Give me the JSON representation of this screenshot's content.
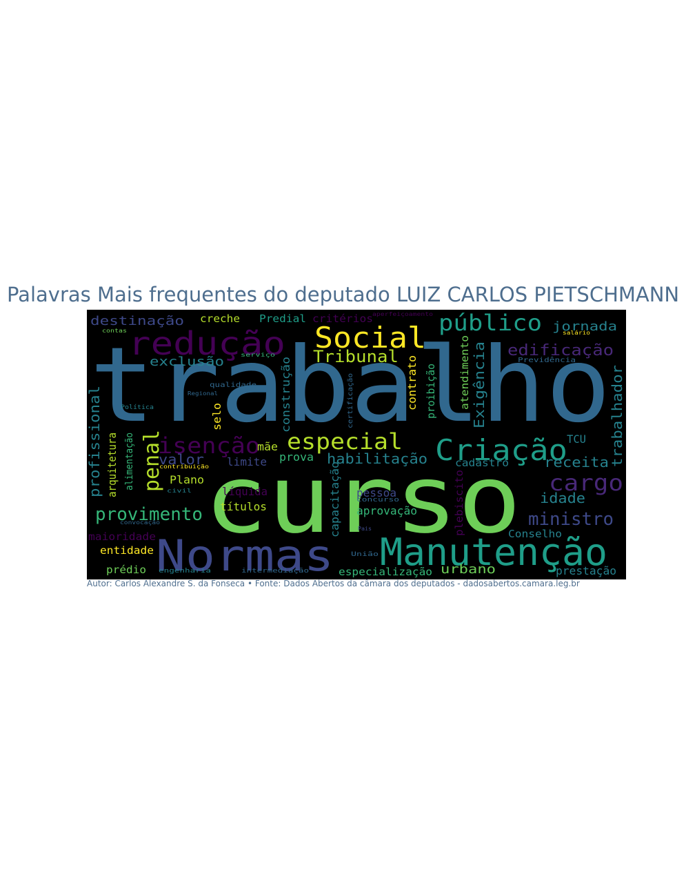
{
  "title": "Palavras Mais frequentes do deputado LUIZ CARLOS PIETSCHMANN",
  "caption": "Autor: Carlos Alexandre S. da Fonseca • Fonte: Dados Abertos da câmara dos deputados - dadosabertos.camara.leg.br",
  "palette": {
    "background": "#000000",
    "viridis": [
      "#440154",
      "#482878",
      "#3e4989",
      "#31688e",
      "#26828e",
      "#1f9e89",
      "#35b779",
      "#6ece58",
      "#b5de2b",
      "#fde725"
    ]
  },
  "words": [
    "trabalho",
    "curso",
    "Normas",
    "Manutenção",
    "redução",
    "Social",
    "Criação",
    "público",
    "especial",
    "isenção",
    "penal",
    "cargo",
    "provimento",
    "ministro",
    "Tribunal",
    "destinação",
    "creche",
    "Predial",
    "critérios",
    "jornada",
    "edificação",
    "exclusão",
    "profissional",
    "arquitetura",
    "alimentação",
    "valor",
    "limite",
    "mãe",
    "prova",
    "habilitação",
    "cadastro",
    "receita",
    "idade",
    "trabalhador",
    "TCU",
    "Plano",
    "líquida",
    "títulos",
    "pessoa",
    "aprovação",
    "capacitação",
    "plebiscito",
    "Conselho",
    "maioridade",
    "entidade",
    "prédio",
    "especialização",
    "urbano",
    "prestação",
    "construção",
    "contrato",
    "proibição",
    "atendimento",
    "Exigência",
    "selo",
    "aperfeiçoamento",
    "contas",
    "salário",
    "serviço",
    "Previdência",
    "qualidade",
    "Regional",
    "certificação",
    "Política",
    "contribuição",
    "civil",
    "concurso",
    "convocação",
    "Pais",
    "União",
    "engenharia",
    "intermediação"
  ]
}
